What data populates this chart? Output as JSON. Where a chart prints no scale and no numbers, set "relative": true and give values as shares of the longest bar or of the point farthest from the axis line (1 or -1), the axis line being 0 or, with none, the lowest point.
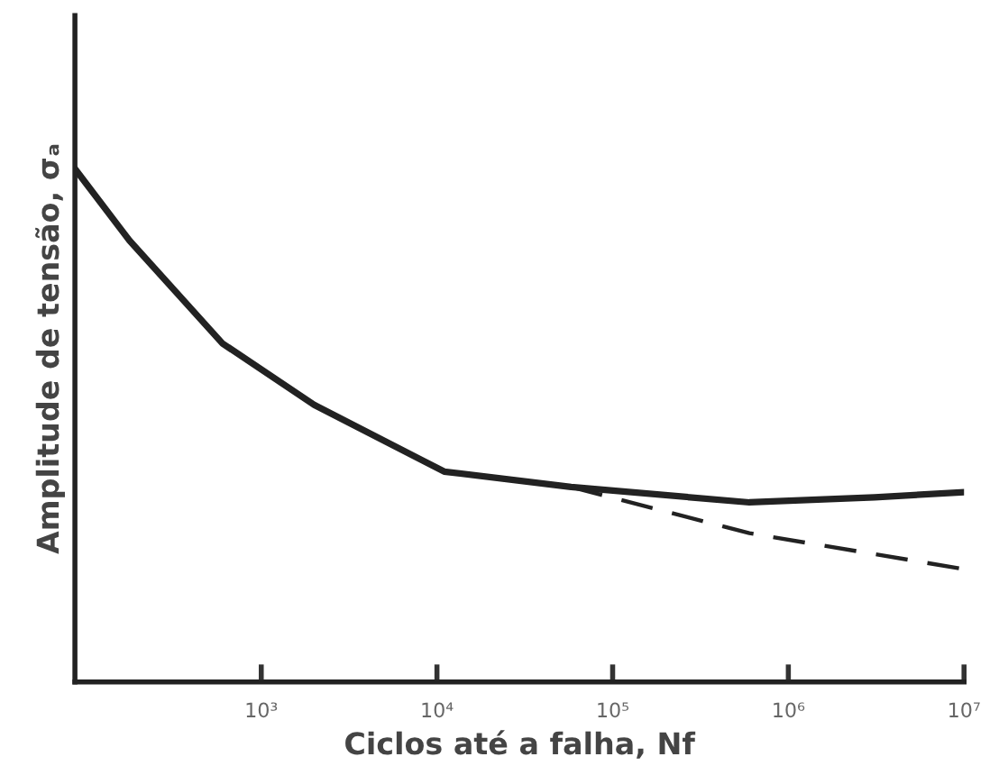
{
  "chart_data": {
    "type": "line",
    "relative": true,
    "log": "x",
    "xlabel": "Ciclos até a falha, Nf",
    "ylabel": "Amplitude de tensão, σₐ",
    "xlim": [
      87,
      10000000
    ],
    "xticks": [
      {
        "value": 1000,
        "label": "10³"
      },
      {
        "value": 10000,
        "label": "10⁴"
      },
      {
        "value": 100000,
        "label": "10⁵"
      },
      {
        "value": 1000000,
        "label": "10⁶"
      },
      {
        "value": 10000000,
        "label": "10⁷"
      }
    ],
    "grid": false,
    "legend": false,
    "marker": "none",
    "series": [
      {
        "color": "#222222",
        "line_style": "solid",
        "x": [
          87,
          178,
          600,
          2000,
          11000,
          58000,
          600000,
          3100000,
          10000000
        ],
        "values": [
          1.0,
          0.86,
          0.66,
          0.54,
          0.41,
          0.38,
          0.35,
          0.36,
          0.37
        ]
      },
      {
        "color": "#222222",
        "line_style": "dashed",
        "x": [
          58000,
          600000,
          10000000
        ],
        "values": [
          0.38,
          0.29,
          0.22
        ]
      }
    ]
  }
}
